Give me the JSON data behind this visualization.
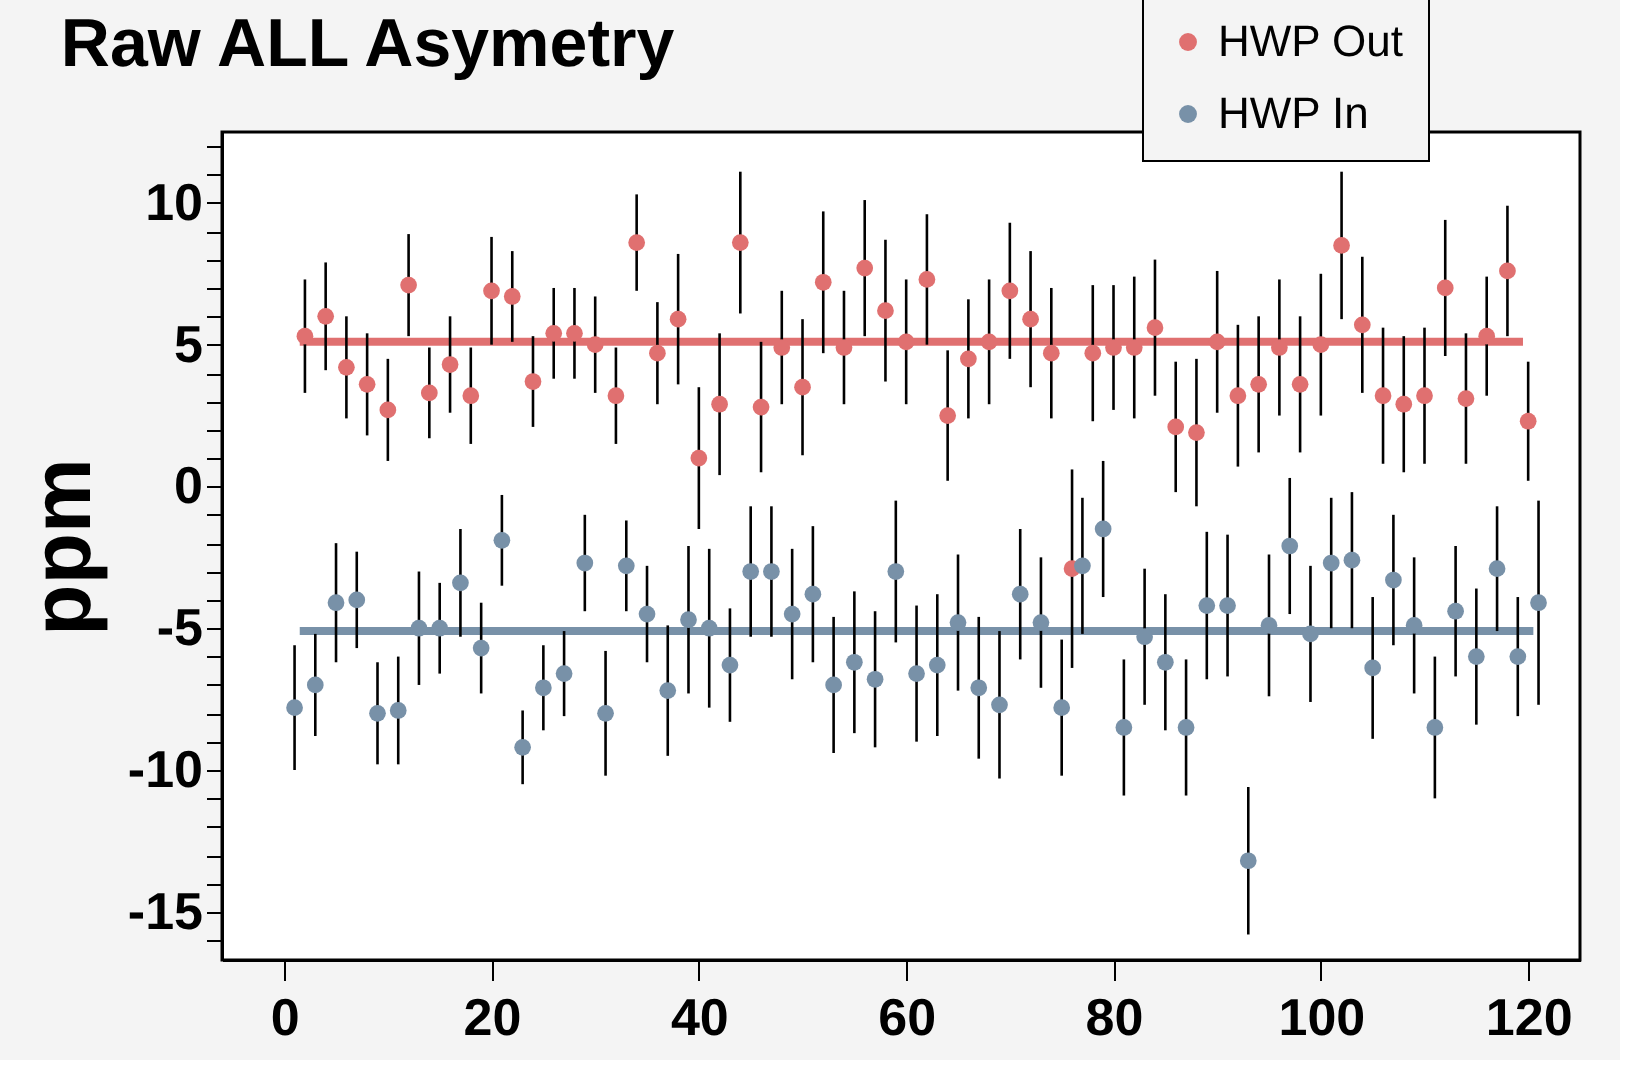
{
  "chart_data": {
    "type": "scatter",
    "title": "Raw ALL Asymetry",
    "ylabel": "ppm",
    "xlim": [
      -6,
      125
    ],
    "xticks": [
      0,
      20,
      40,
      60,
      80,
      100,
      120
    ],
    "ylim": [
      -16.7,
      12.5
    ],
    "yticks": [
      {
        "value": -16,
        "label": null
      },
      -15,
      {
        "value": -14,
        "label": null
      },
      {
        "value": -13,
        "label": null
      },
      {
        "value": -12,
        "label": null
      },
      {
        "value": -11,
        "label": null
      },
      -10,
      {
        "value": -9,
        "label": null
      },
      {
        "value": -8,
        "label": null
      },
      {
        "value": -7,
        "label": null
      },
      {
        "value": -6,
        "label": null
      },
      -5,
      {
        "value": -4,
        "label": null
      },
      {
        "value": -3,
        "label": null
      },
      {
        "value": -2,
        "label": null
      },
      {
        "value": -1,
        "label": null
      },
      0,
      {
        "value": 1,
        "label": null
      },
      {
        "value": 2,
        "label": null
      },
      {
        "value": 3,
        "label": null
      },
      {
        "value": 4,
        "label": null
      },
      5,
      {
        "value": 6,
        "label": null
      },
      {
        "value": 7,
        "label": null
      },
      {
        "value": 8,
        "label": null
      },
      {
        "value": 9,
        "label": null
      },
      10,
      {
        "value": 11,
        "label": null
      },
      {
        "value": 12,
        "label": null
      }
    ],
    "legend": "top right",
    "series": [
      {
        "name": "HWP Out",
        "color": "#e07070",
        "marker": "circle",
        "x": [
          2,
          4,
          6,
          8,
          10,
          12,
          14,
          16,
          18,
          20,
          22,
          24,
          26,
          28,
          30,
          32,
          34,
          36,
          38,
          40,
          42,
          44,
          46,
          48,
          50,
          52,
          54,
          56,
          58,
          60,
          62,
          64,
          66,
          68,
          70,
          72,
          74,
          76,
          78,
          80,
          82,
          84,
          86,
          88,
          90,
          92,
          94,
          96,
          98,
          100,
          102,
          104,
          106,
          108,
          110,
          112,
          114,
          116,
          118,
          120
        ],
        "values": [
          5.3,
          6.0,
          4.2,
          3.6,
          2.7,
          7.1,
          3.3,
          4.3,
          3.2,
          6.9,
          6.7,
          3.7,
          5.4,
          5.4,
          5.0,
          3.2,
          8.6,
          4.7,
          5.9,
          1.0,
          2.9,
          8.6,
          2.8,
          4.9,
          3.5,
          7.2,
          4.9,
          7.7,
          6.2,
          5.1,
          7.3,
          2.5,
          4.5,
          5.1,
          6.9,
          5.9,
          4.7,
          -2.9,
          4.7,
          4.9,
          4.9,
          5.6,
          2.1,
          1.9,
          5.1,
          3.2,
          3.6,
          4.9,
          3.6,
          5.0,
          8.5,
          5.7,
          3.2,
          2.9,
          3.2,
          7.0,
          3.1,
          5.3,
          7.6,
          2.3
        ],
        "errors": [
          2.0,
          1.9,
          1.8,
          1.8,
          1.8,
          1.8,
          1.6,
          1.7,
          1.7,
          1.9,
          1.6,
          1.6,
          1.6,
          1.6,
          1.7,
          1.7,
          1.7,
          1.8,
          2.3,
          2.5,
          2.5,
          2.5,
          2.3,
          2.0,
          2.4,
          2.5,
          2.0,
          2.4,
          2.5,
          2.2,
          2.3,
          2.3,
          2.1,
          2.2,
          2.4,
          2.4,
          2.3,
          3.5,
          2.4,
          2.2,
          2.5,
          2.4,
          2.3,
          2.6,
          2.5,
          2.5,
          2.4,
          2.4,
          2.4,
          2.5,
          2.6,
          2.4,
          2.4,
          2.4,
          2.4,
          2.4,
          2.3,
          2.1,
          2.3,
          2.1
        ]
      },
      {
        "name": "HWP In",
        "color": "#7891a8",
        "marker": "circle",
        "x": [
          1,
          3,
          5,
          7,
          9,
          11,
          13,
          15,
          17,
          19,
          21,
          23,
          25,
          27,
          29,
          31,
          33,
          35,
          37,
          39,
          41,
          43,
          45,
          47,
          49,
          51,
          53,
          55,
          57,
          59,
          61,
          63,
          65,
          67,
          69,
          71,
          73,
          75,
          77,
          79,
          81,
          83,
          85,
          87,
          89,
          91,
          93,
          95,
          97,
          99,
          101,
          103,
          105,
          107,
          109,
          111,
          113,
          115,
          117,
          119,
          121
        ],
        "values": [
          -7.8,
          -7.0,
          -4.1,
          -4.0,
          -8.0,
          -7.9,
          -5.0,
          -5.0,
          -3.4,
          -5.7,
          -1.9,
          -9.2,
          -7.1,
          -6.6,
          -2.7,
          -8.0,
          -2.8,
          -4.5,
          -7.2,
          -4.7,
          -5.0,
          -6.3,
          -3.0,
          -3.0,
          -4.5,
          -3.8,
          -7.0,
          -6.2,
          -6.8,
          -3.0,
          -6.6,
          -6.3,
          -4.8,
          -7.1,
          -7.7,
          -3.8,
          -4.8,
          -7.8,
          -2.8,
          -1.5,
          -8.5,
          -5.3,
          -6.2,
          -8.5,
          -4.2,
          -4.2,
          -13.2,
          -4.9,
          -2.1,
          -5.2,
          -2.7,
          -2.6,
          -6.4,
          -3.3,
          -4.9,
          -8.5,
          -4.4,
          -6.0,
          -2.9,
          -6.0,
          -4.1
        ],
        "errors": [
          2.2,
          1.8,
          2.1,
          1.7,
          1.8,
          1.9,
          2.0,
          1.6,
          1.9,
          1.6,
          1.6,
          1.3,
          1.5,
          1.5,
          1.7,
          2.2,
          1.6,
          1.7,
          2.3,
          2.6,
          2.8,
          2.0,
          2.3,
          2.3,
          2.3,
          2.4,
          2.4,
          2.5,
          2.4,
          2.5,
          2.4,
          2.5,
          2.4,
          2.5,
          2.6,
          2.3,
          2.3,
          2.4,
          2.4,
          2.4,
          2.4,
          2.4,
          2.4,
          2.4,
          2.6,
          2.5,
          2.6,
          2.5,
          2.4,
          2.4,
          2.3,
          2.4,
          2.5,
          2.3,
          2.4,
          2.5,
          2.3,
          2.4,
          2.2,
          2.1,
          3.6
        ]
      },
      {
        "type": "line",
        "marker": "none",
        "color": "#e07070",
        "x": [
          1.5,
          119.5
        ],
        "values": [
          5.1,
          5.1
        ]
      },
      {
        "type": "line",
        "marker": "none",
        "color": "#7891a8",
        "x": [
          1.5,
          120.5
        ],
        "values": [
          -5.1,
          -5.1
        ]
      }
    ]
  }
}
